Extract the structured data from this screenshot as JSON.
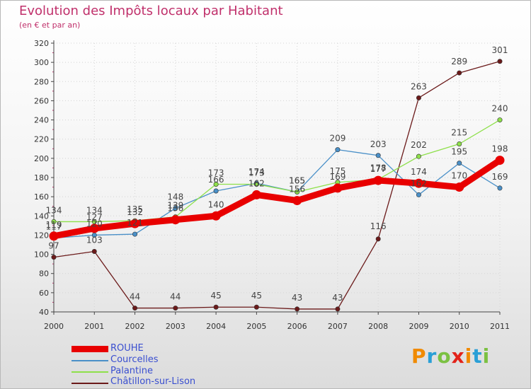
{
  "chart_data": {
    "type": "line",
    "title": "Evolution des Impôts locaux par Habitant",
    "subtitle": "(en € et par an)",
    "x": [
      "2000",
      "2001",
      "2002",
      "2003",
      "2004",
      "2005",
      "2006",
      "2007",
      "2008",
      "2009",
      "2010",
      "2011"
    ],
    "ylim": [
      40,
      320
    ],
    "yticks": [
      40,
      60,
      80,
      100,
      120,
      140,
      160,
      180,
      200,
      220,
      240,
      260,
      280,
      300,
      320
    ],
    "series": [
      {
        "name": "ROUHE",
        "color": "#e80000",
        "values": [
          119,
          127,
          132,
          136,
          140,
          162,
          156,
          169,
          177,
          174,
          170,
          198
        ]
      },
      {
        "name": "Courcelles",
        "color": "#4a90c8",
        "values": [
          117,
          120,
          121,
          148,
          166,
          174,
          165,
          209,
          203,
          162,
          195,
          169
        ]
      },
      {
        "name": "Palantine",
        "color": "#8ee04a",
        "values": [
          134,
          134,
          135,
          139,
          173,
          173,
          165,
          175,
          178,
          202,
          215,
          240
        ]
      },
      {
        "name": "Châtillon-sur-Lison",
        "color": "#6b1a1a",
        "values": [
          97,
          103,
          44,
          44,
          45,
          45,
          43,
          43,
          116,
          263,
          289,
          301
        ]
      }
    ]
  },
  "brand": {
    "letters": [
      "P",
      "r",
      "o",
      "x",
      "i",
      "t",
      "i"
    ],
    "colors": [
      "#f08a00",
      "#2a9fd6",
      "#7bc142",
      "#e2231a",
      "#f08a00",
      "#2a9fd6",
      "#7bc142"
    ]
  }
}
